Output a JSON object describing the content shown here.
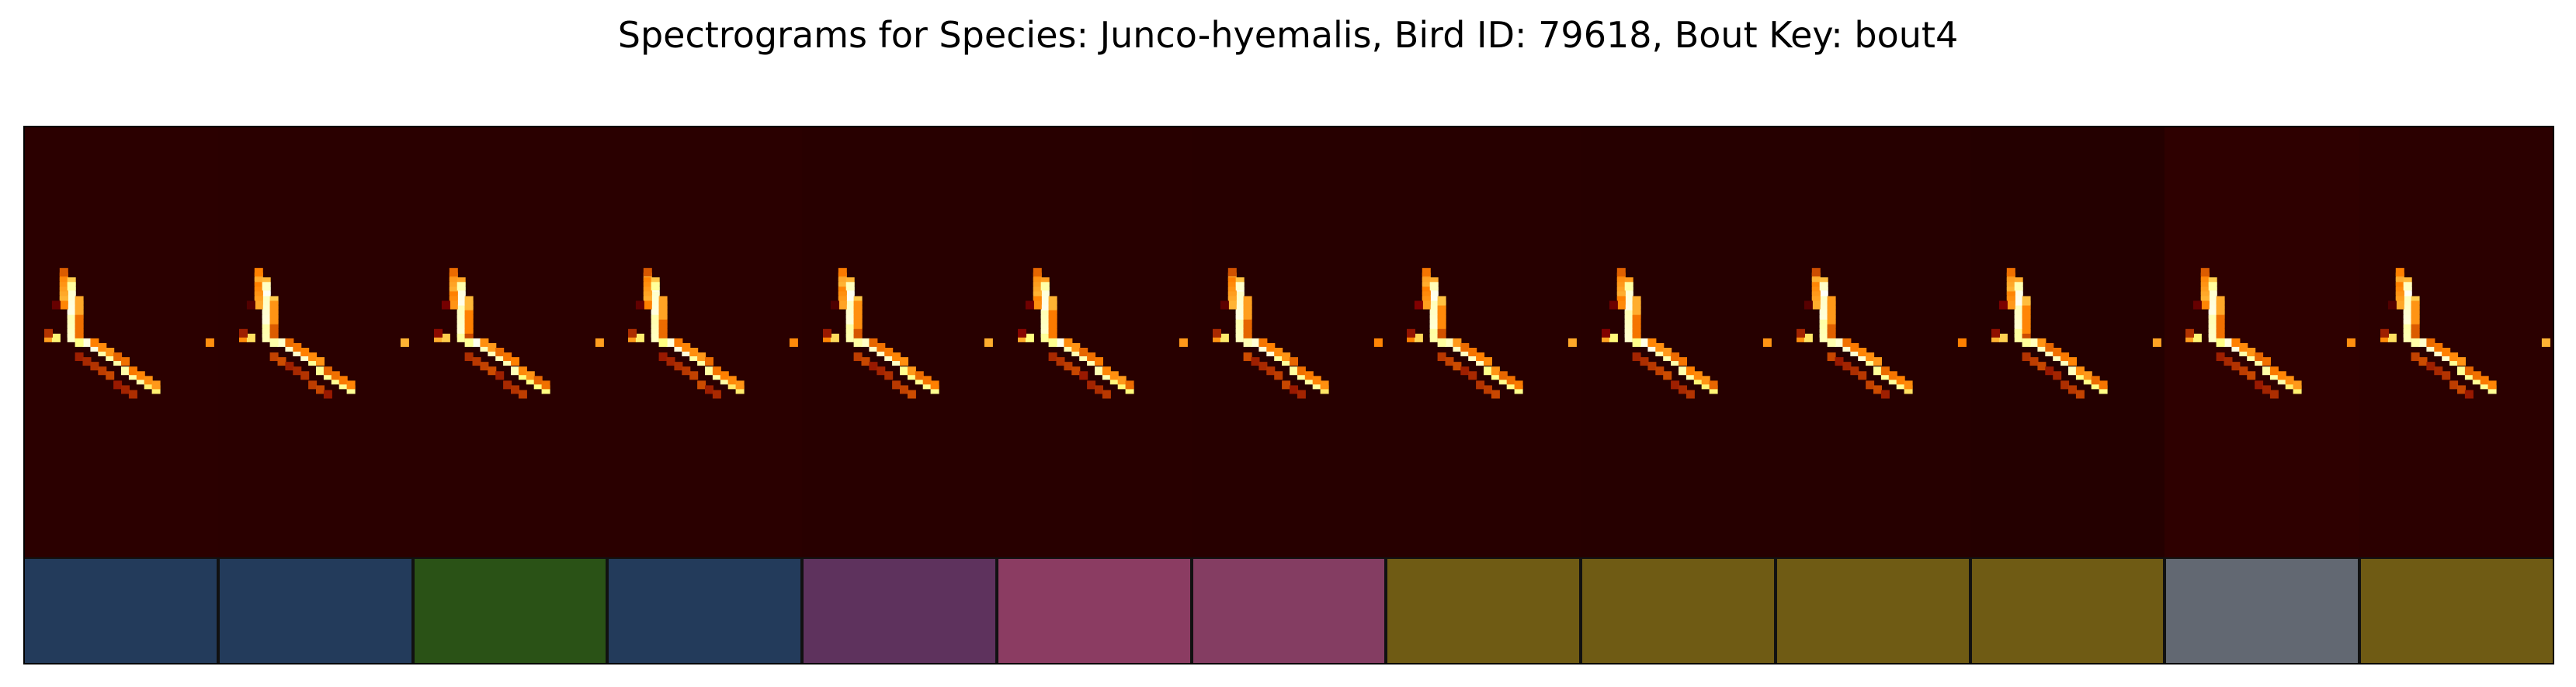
{
  "chart_data": {
    "type": "heatmap",
    "title": "Spectrograms for Species: Junco-hyemalis, Bird ID: 79618, Bout Key: bout4",
    "colormap": "afmhot",
    "background_colors": [
      "#2b0000",
      "#2a0000",
      "#2a0000",
      "#2a0000",
      "#280000",
      "#280000",
      "#270000",
      "#270000",
      "#260000",
      "#260000",
      "#240000",
      "#2e0000",
      "#2b0000"
    ],
    "syllables": [
      {
        "index": 1,
        "cluster_color": "#233b5b"
      },
      {
        "index": 2,
        "cluster_color": "#233b5b"
      },
      {
        "index": 3,
        "cluster_color": "#2a5216"
      },
      {
        "index": 4,
        "cluster_color": "#233b5b"
      },
      {
        "index": 5,
        "cluster_color": "#5e325d"
      },
      {
        "index": 6,
        "cluster_color": "#8b3c62"
      },
      {
        "index": 7,
        "cluster_color": "#843d62"
      },
      {
        "index": 8,
        "cluster_color": "#6f5b14"
      },
      {
        "index": 9,
        "cluster_color": "#6f5b14"
      },
      {
        "index": 10,
        "cluster_color": "#6f5b14"
      },
      {
        "index": 11,
        "cluster_color": "#6f5b14"
      },
      {
        "index": 12,
        "cluster_color": "#626872"
      },
      {
        "index": 13,
        "cluster_color": "#6f5b14"
      }
    ]
  }
}
